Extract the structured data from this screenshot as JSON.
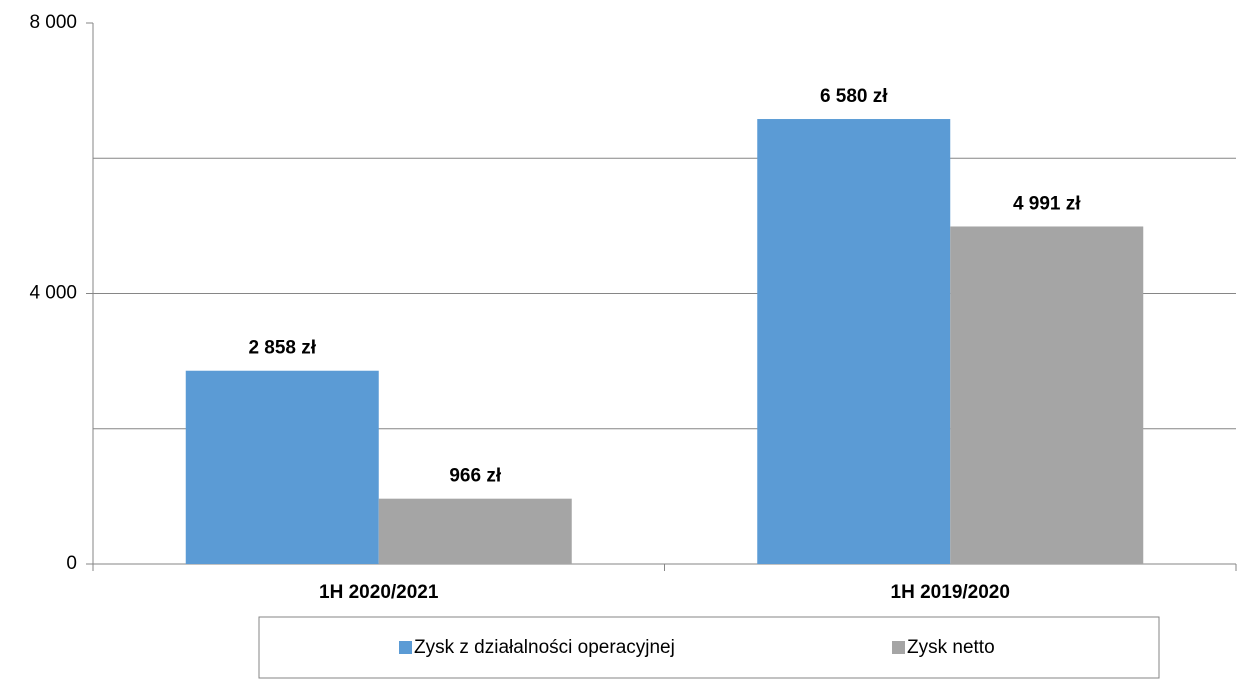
{
  "chart_data": {
    "type": "bar",
    "categories": [
      "1H 2020/2021",
      "1H 2019/2020"
    ],
    "series": [
      {
        "name": "Zysk z działalności operacyjnej",
        "color": "#5b9bd5",
        "values": [
          2858,
          6580
        ],
        "value_labels": [
          "2 858 zł",
          "6 580 zł"
        ]
      },
      {
        "name": "Zysk netto",
        "color": "#a5a5a5",
        "values": [
          966,
          4991
        ],
        "value_labels": [
          "966 zł",
          "4 991 zł"
        ]
      }
    ],
    "ylim": [
      0,
      8000
    ],
    "yticks": [
      0,
      {
        "value": 4000,
        "label": "4 000"
      },
      {
        "value": 8000,
        "label": "8 000"
      }
    ],
    "grid_lines": [
      2000,
      4000,
      6000
    ],
    "legend": "bottom"
  }
}
